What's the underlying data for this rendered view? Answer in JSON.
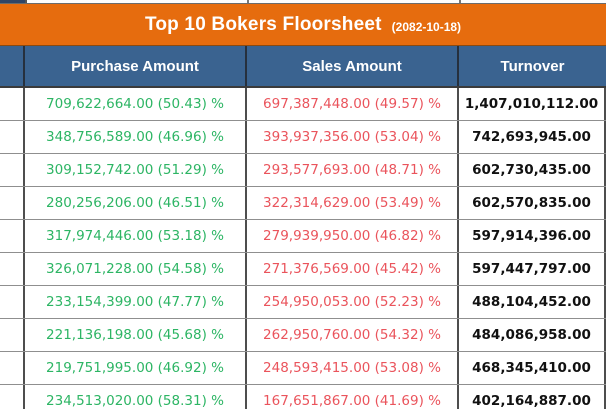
{
  "title": {
    "text": "Top 10 Bokers Floorsheet",
    "date": "(2082-10-18)"
  },
  "table": {
    "headers": {
      "purchase": "Purchase Amount",
      "sales": "Sales Amount",
      "turnover": "Turnover"
    },
    "rows": [
      {
        "purchase": "709,622,664.00 (50.43) %",
        "sales": "697,387,448.00 (49.57) %",
        "turnover": "1,407,010,112.00"
      },
      {
        "purchase": "348,756,589.00 (46.96) %",
        "sales": "393,937,356.00 (53.04) %",
        "turnover": "742,693,945.00"
      },
      {
        "purchase": "309,152,742.00 (51.29) %",
        "sales": "293,577,693.00 (48.71) %",
        "turnover": "602,730,435.00"
      },
      {
        "purchase": "280,256,206.00 (46.51) %",
        "sales": "322,314,629.00 (53.49) %",
        "turnover": "602,570,835.00"
      },
      {
        "purchase": "317,974,446.00 (53.18) %",
        "sales": "279,939,950.00 (46.82) %",
        "turnover": "597,914,396.00"
      },
      {
        "purchase": "326,071,228.00 (54.58) %",
        "sales": "271,376,569.00 (45.42) %",
        "turnover": "597,447,797.00"
      },
      {
        "purchase": "233,154,399.00 (47.77) %",
        "sales": "254,950,053.00 (52.23) %",
        "turnover": "488,104,452.00"
      },
      {
        "purchase": "221,136,198.00 (45.68) %",
        "sales": "262,950,760.00 (54.32) %",
        "turnover": "484,086,958.00"
      },
      {
        "purchase": "219,751,995.00 (46.92) %",
        "sales": "248,593,415.00 (53.08) %",
        "turnover": "468,345,410.00"
      },
      {
        "purchase": "234,513,020.00 (58.31) %",
        "sales": "167,651,867.00 (41.69) %",
        "turnover": "402,164,887.00"
      }
    ]
  },
  "colors": {
    "title_orange": "#e66c0e",
    "header_blue": "#3a6390",
    "purchase_green": "#2db564",
    "sales_red": "#ea545c",
    "turnover_black": "#111111",
    "corner_navy": "#1e3a5f"
  }
}
